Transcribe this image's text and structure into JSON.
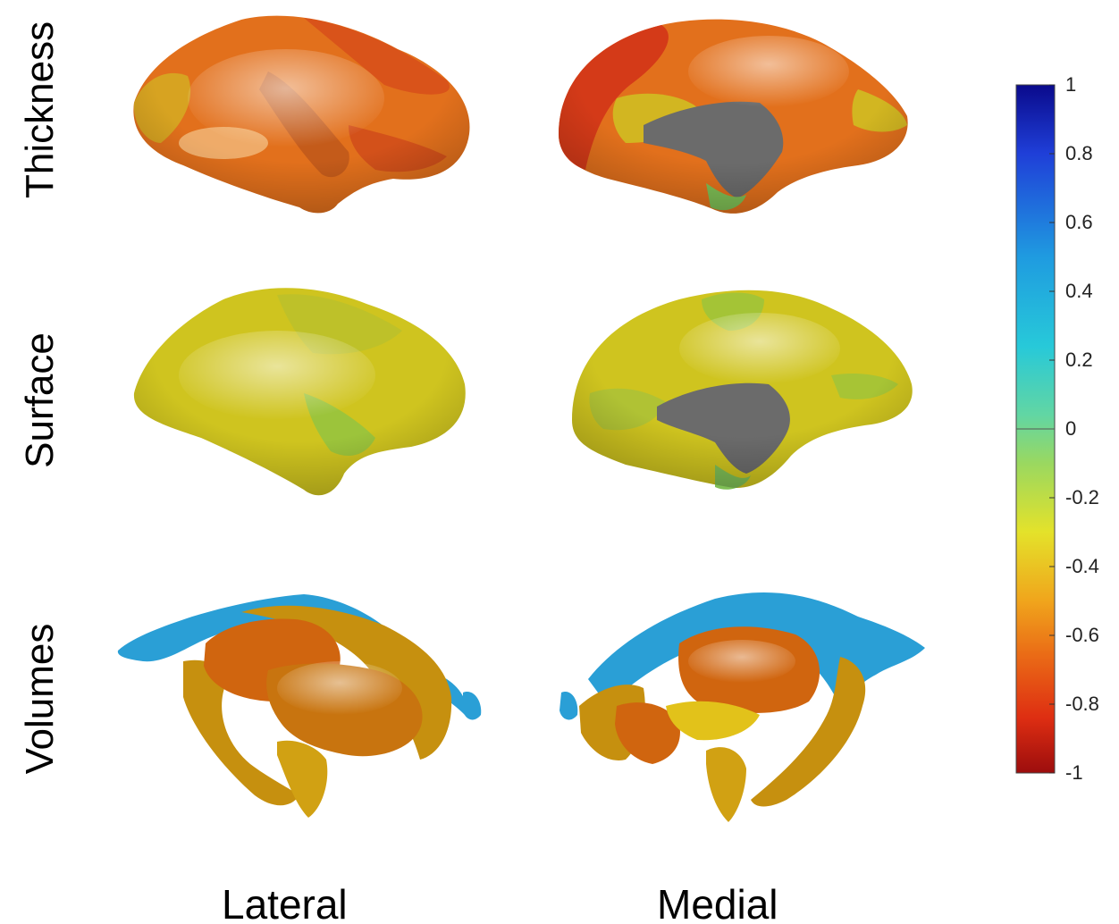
{
  "rows": {
    "thickness": "Thickness",
    "surface": "Surface",
    "volumes": "Volumes"
  },
  "columns": {
    "lateral": "Lateral",
    "medial": "Medial"
  },
  "colorbar": {
    "range": [
      -1,
      1
    ],
    "ticks": [
      "1",
      "0.8",
      "0.6",
      "0.4",
      "0.2",
      "0",
      "-0.2",
      "-0.4",
      "-0.6",
      "-0.8",
      "-1"
    ],
    "colormap": "jet",
    "stops": [
      "#0a0a8c",
      "#1f3fd8",
      "#1f9be0",
      "#27c9d9",
      "#62d6a3",
      "#9ad860",
      "#e4e22a",
      "#f0a51c",
      "#ea6a16",
      "#de2e12",
      "#9c0d0d"
    ]
  },
  "colors": {
    "thickness_main": "#e2701c",
    "thickness_red": "#d43a18",
    "thickness_yellow": "#cfc222",
    "surface_main": "#cfc41f",
    "surface_green": "#9cc43b",
    "medial_wall": "#6b6b6b",
    "volume_blue": "#2a9fd6",
    "volume_orange": "#d0650f",
    "volume_gold": "#c6900f"
  }
}
